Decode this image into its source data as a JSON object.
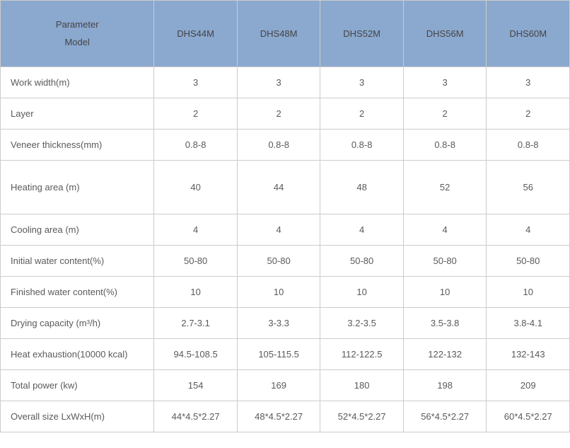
{
  "table": {
    "header_bg": "#8ba8ce",
    "border_color": "#cccccc",
    "text_color": "#5a5a5a",
    "font_size": 13,
    "param_header_line1": "Parameter",
    "param_header_line2": "Model",
    "models": [
      "DHS44M",
      "DHS48M",
      "DHS52M",
      "DHS56M",
      "DHS60M"
    ],
    "rows": [
      {
        "label": "Work width(m)",
        "height": "normal",
        "values": [
          "3",
          "3",
          "3",
          "3",
          "3"
        ]
      },
      {
        "label": "Layer",
        "height": "normal",
        "values": [
          "2",
          "2",
          "2",
          "2",
          "2"
        ]
      },
      {
        "label": "Veneer  thickness(mm)",
        "height": "normal",
        "values": [
          "0.8-8",
          "0.8-8",
          "0.8-8",
          "0.8-8",
          "0.8-8"
        ]
      },
      {
        "label": "Heating area (m)",
        "height": "tall",
        "values": [
          "40",
          "44",
          "48",
          "52",
          "56"
        ]
      },
      {
        "label": "Cooling area (m)",
        "height": "normal",
        "values": [
          "4",
          "4",
          "4",
          "4",
          "4"
        ]
      },
      {
        "label": "Initial water content(%)",
        "height": "normal",
        "values": [
          "50-80",
          "50-80",
          "50-80",
          "50-80",
          "50-80"
        ]
      },
      {
        "label": "Finished water content(%)",
        "height": "normal",
        "values": [
          "10",
          "10",
          "10",
          "10",
          "10"
        ]
      },
      {
        "label": "Drying capacity (m³/h)",
        "height": "normal",
        "values": [
          "2.7-3.1",
          "3-3.3",
          "3.2-3.5",
          "3.5-3.8",
          "3.8-4.1"
        ]
      },
      {
        "label": "Heat exhaustion(10000 kcal)",
        "height": "normal",
        "values": [
          "94.5-108.5",
          "105-115.5",
          "112-122.5",
          "122-132",
          "132-143"
        ]
      },
      {
        "label": "Total power (kw)",
        "height": "normal",
        "values": [
          "154",
          "169",
          "180",
          "198",
          "209"
        ]
      },
      {
        "label": "Overall size LxWxH(m)",
        "height": "normal",
        "values": [
          "44*4.5*2.27",
          "48*4.5*2.27",
          "52*4.5*2.27",
          "56*4.5*2.27",
          "60*4.5*2.27"
        ]
      }
    ]
  }
}
